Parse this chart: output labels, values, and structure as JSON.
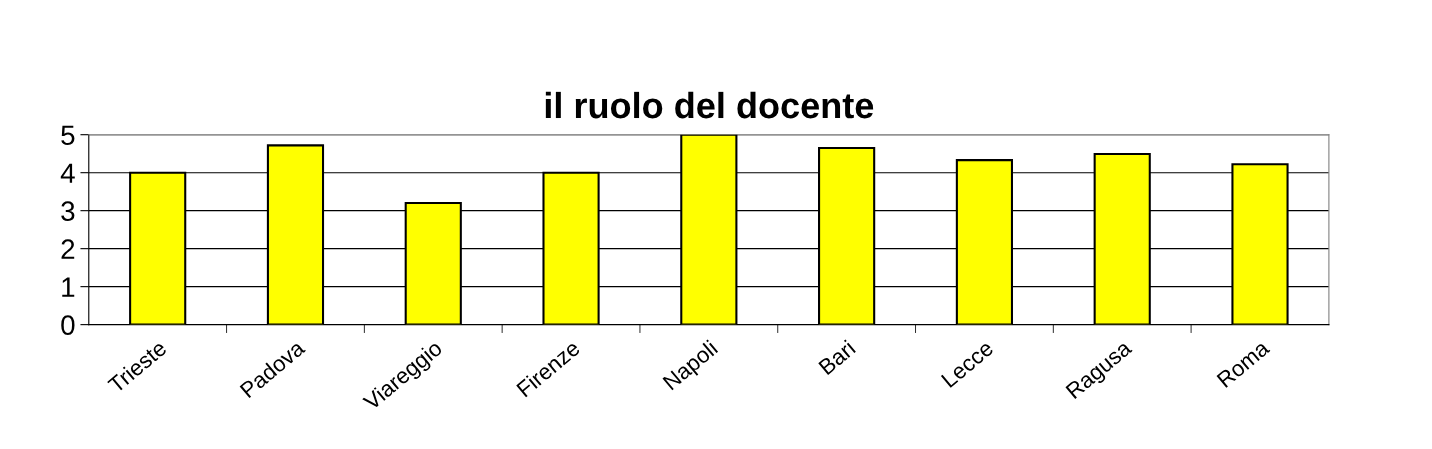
{
  "chart_data": {
    "type": "bar",
    "title": "il ruolo del docente",
    "categories": [
      "Trieste",
      "Padova",
      "Viareggio",
      "Firenze",
      "Napoli",
      "Bari",
      "Lecce",
      "Ragusa",
      "Roma"
    ],
    "values": [
      4.0,
      4.72,
      3.2,
      4.0,
      5.0,
      4.65,
      4.33,
      4.49,
      4.22
    ],
    "color": "#ffff00",
    "ylim": [
      0,
      5
    ],
    "yticks": [
      0,
      1,
      2,
      3,
      4,
      5
    ],
    "grid": "y",
    "legend": false
  }
}
